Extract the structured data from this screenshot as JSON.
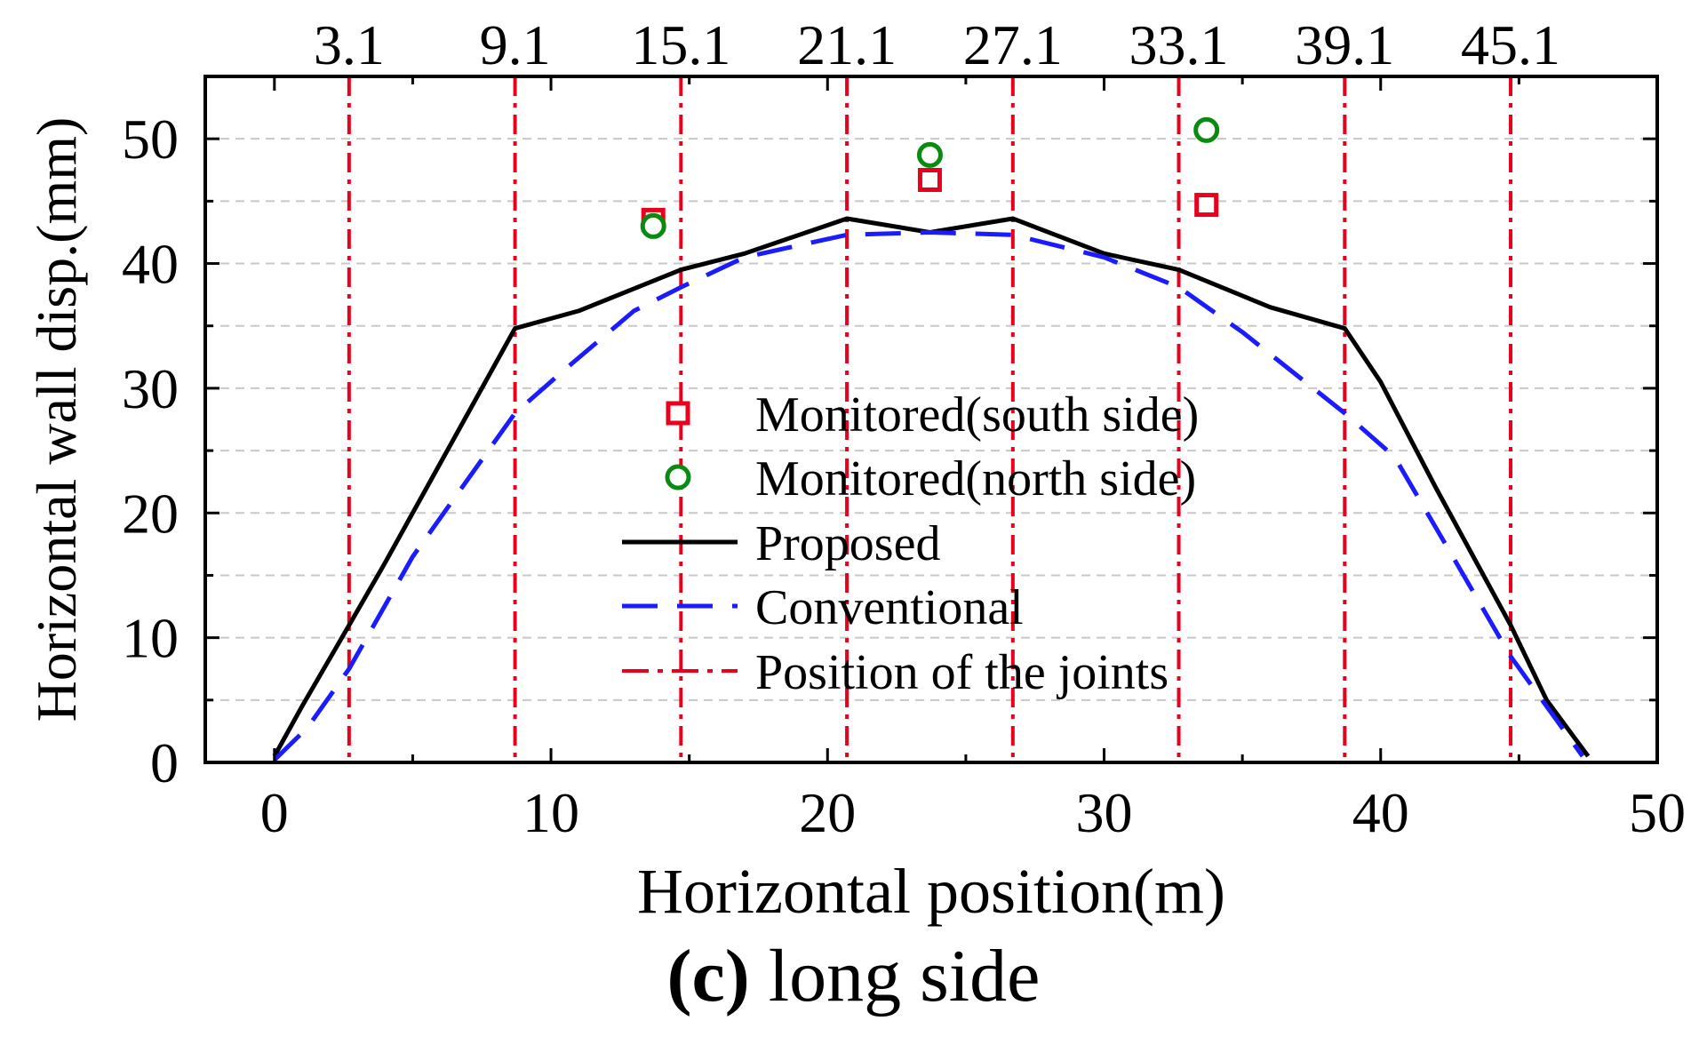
{
  "chart_data": {
    "type": "line",
    "xlabel": "Horizontal position(m)",
    "ylabel": "Horizontal wall disp.(mm)",
    "xlim": [
      -2.5,
      50
    ],
    "ylim": [
      0,
      55
    ],
    "x_ticks": [
      0,
      10,
      20,
      30,
      40,
      50
    ],
    "y_ticks": [
      0,
      10,
      20,
      30,
      40,
      50
    ],
    "grid": "horizontal dashed, every 5 mm",
    "legend_position": "center",
    "joints": {
      "name": "Position of the joints",
      "color": "#e8001c",
      "positions": [
        2.7,
        8.7,
        14.7,
        20.7,
        26.7,
        32.7,
        38.7,
        44.7
      ],
      "labels": [
        "3.1",
        "9.1",
        "15.1",
        "21.1",
        "27.1",
        "33.1",
        "39.1",
        "45.1"
      ]
    },
    "series": [
      {
        "name": "Proposed",
        "style": "solid",
        "color": "#000000",
        "x": [
          0,
          1,
          2.7,
          4,
          6,
          8.7,
          11,
          14.7,
          17,
          20.7,
          23.7,
          26.7,
          30,
          32.7,
          36,
          38.7,
          40,
          42,
          44.7,
          46,
          47.5
        ],
        "y": [
          0.5,
          4.5,
          11,
          16,
          24,
          34.8,
          36.2,
          39.5,
          40.8,
          43.6,
          42.5,
          43.6,
          40.8,
          39.5,
          36.5,
          34.8,
          30.5,
          22,
          11,
          5,
          0.5
        ]
      },
      {
        "name": "Conventional",
        "style": "dashed",
        "color": "#1b1bff",
        "x": [
          0,
          1.2,
          2.7,
          5,
          8.7,
          10.5,
          13,
          14.7,
          17,
          20.7,
          23.7,
          26.7,
          30,
          32.7,
          35,
          38.7,
          40.5,
          43,
          44.7,
          47.3
        ],
        "y": [
          0.2,
          2.8,
          7.5,
          16.5,
          28,
          31.5,
          36.2,
          38.1,
          40.5,
          42.3,
          42.5,
          42.3,
          40.5,
          38.1,
          34.5,
          28,
          24.5,
          15,
          8.5,
          0.5
        ]
      },
      {
        "name": "Monitored(south side)",
        "marker": "square",
        "color": "#e8001c",
        "x": [
          13.7,
          23.7,
          33.7
        ],
        "y": [
          43.5,
          46.7,
          44.7
        ]
      },
      {
        "name": "Monitored(north side)",
        "marker": "circle",
        "color": "#0b8a12",
        "x": [
          13.7,
          23.7,
          33.7
        ],
        "y": [
          43.0,
          48.7,
          50.7
        ]
      }
    ]
  },
  "caption": {
    "letter": "(c)",
    "text": "long side"
  }
}
